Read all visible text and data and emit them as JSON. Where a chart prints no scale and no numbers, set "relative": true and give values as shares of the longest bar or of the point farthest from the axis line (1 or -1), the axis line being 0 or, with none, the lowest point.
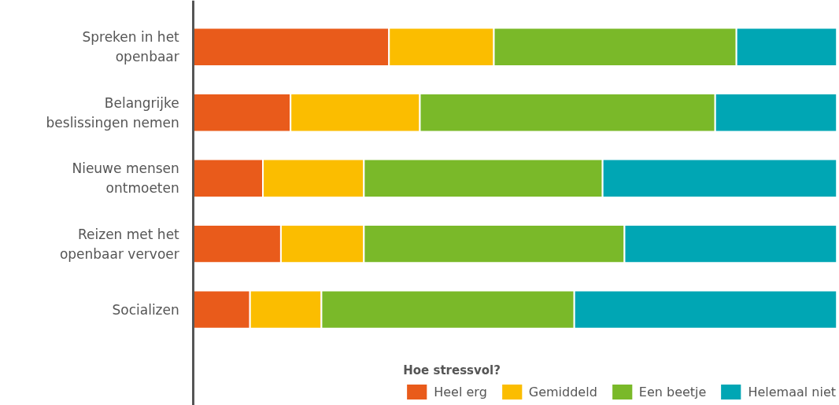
{
  "chart_data": {
    "type": "bar",
    "orientation": "horizontal",
    "stacked": true,
    "relative": true,
    "legend": "bottom",
    "legend_title": "Hoe stressvol?",
    "categories": [
      "Spreken in het openbaar",
      "Belangrijke beslissingen nemen",
      "Nieuwe mensen ontmoeten",
      "Reizen met het openbaar vervoer",
      "Socializen"
    ],
    "series": [
      {
        "name": "Heel erg",
        "color": "#e95b1b",
        "values": [
          0.304,
          0.151,
          0.108,
          0.136,
          0.088
        ]
      },
      {
        "name": "Gemiddeld",
        "color": "#fbbd00",
        "values": [
          0.163,
          0.201,
          0.157,
          0.129,
          0.111
        ]
      },
      {
        "name": "Een beetje",
        "color": "#7ab929",
        "values": [
          0.377,
          0.459,
          0.371,
          0.405,
          0.393
        ]
      },
      {
        "name": "Helemaal niet",
        "color": "#00a6b4",
        "values": [
          0.156,
          0.189,
          0.364,
          0.33,
          0.408
        ]
      }
    ]
  }
}
